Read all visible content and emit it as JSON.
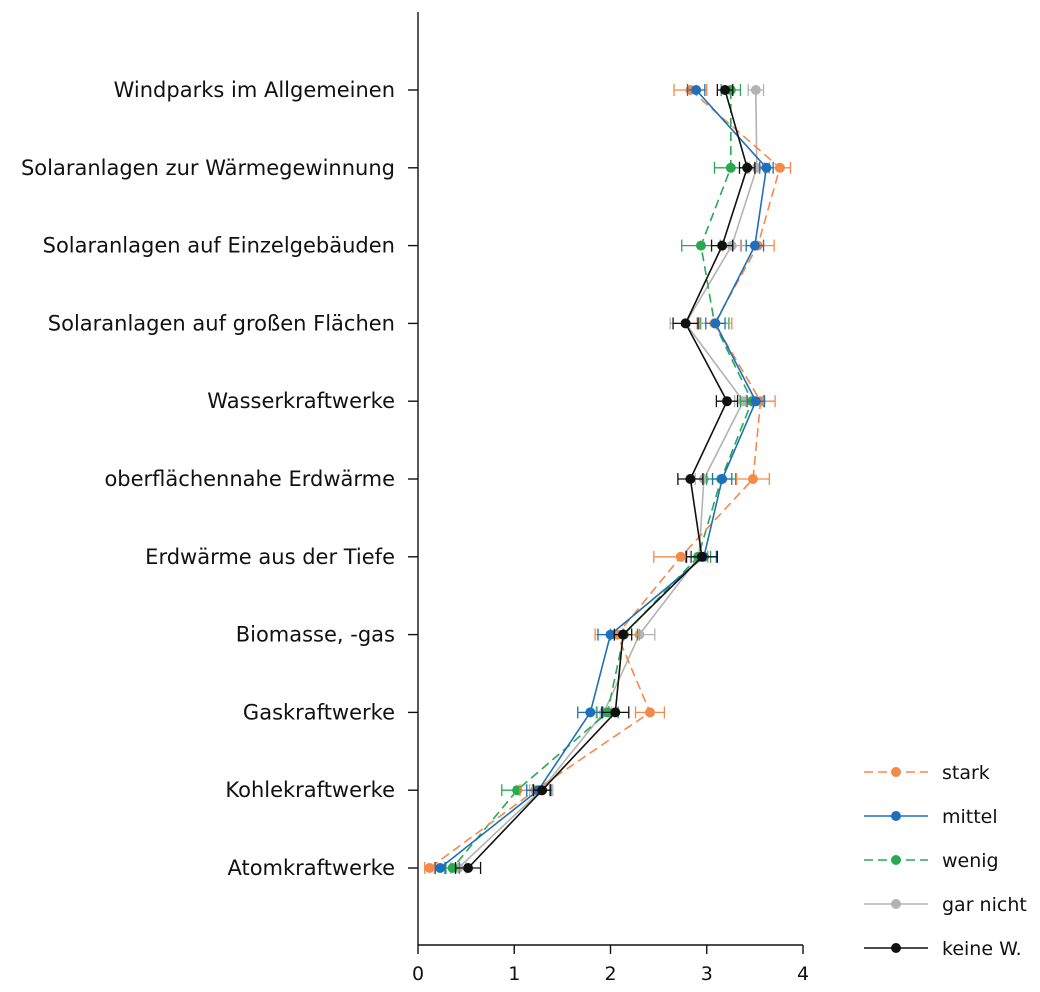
{
  "chart_data": {
    "type": "line",
    "orientation": "horizontal",
    "categories": [
      "Windparks im Allgemeinen",
      "Solaranlagen zur Wärmegewinnung",
      "Solaranlagen auf Einzelgebäuden",
      "Solaranlagen auf großen Flächen",
      "Wasserkraftwerke",
      "oberflächennahe Erdwärme",
      "Erdwärme aus der Tiefe",
      "Biomasse, -gas",
      "Gaskraftwerke",
      "Kohlekraftwerke",
      "Atomkraftwerke"
    ],
    "x_ticks": [
      "0",
      "1",
      "2",
      "3",
      "4"
    ],
    "xlim": [
      0,
      4
    ],
    "grid": false,
    "legend_position": "bottom-right",
    "series": [
      {
        "name": "stark",
        "color": "#f58a48",
        "dashed": true,
        "values": [
          2.83,
          3.76,
          3.53,
          3.08,
          3.56,
          3.48,
          2.73,
          2.07,
          2.41,
          1.22,
          0.12
        ],
        "errors": [
          0.17,
          0.11,
          0.17,
          0.18,
          0.15,
          0.17,
          0.28,
          0.23,
          0.15,
          0.16,
          0.05
        ]
      },
      {
        "name": "mittel",
        "color": "#1f6fba",
        "dashed": false,
        "values": [
          2.89,
          3.62,
          3.5,
          3.09,
          3.51,
          3.16,
          2.97,
          2.0,
          1.79,
          1.25,
          0.23
        ],
        "errors": [
          0.09,
          0.07,
          0.09,
          0.1,
          0.09,
          0.1,
          0.13,
          0.13,
          0.13,
          0.12,
          0.05
        ]
      },
      {
        "name": "wenig",
        "color": "#2aa852",
        "dashed": true,
        "values": [
          3.25,
          3.25,
          2.94,
          3.08,
          3.47,
          3.15,
          2.91,
          2.14,
          1.97,
          1.03,
          0.36
        ],
        "errors": [
          0.1,
          0.17,
          0.2,
          0.15,
          0.12,
          0.15,
          0.13,
          0.14,
          0.11,
          0.16,
          0.07
        ]
      },
      {
        "name": "gar nicht",
        "color": "#b3b3b3",
        "dashed": false,
        "values": [
          3.51,
          3.52,
          3.26,
          2.78,
          3.38,
          2.97,
          2.92,
          2.3,
          1.93,
          1.28,
          0.42
        ],
        "errors": [
          0.08,
          0.08,
          0.09,
          0.16,
          0.09,
          0.09,
          0.09,
          0.16,
          0.08,
          0.12,
          0.08
        ]
      },
      {
        "name": "keine W.",
        "color": "#111111",
        "dashed": false,
        "values": [
          3.19,
          3.42,
          3.16,
          2.78,
          3.21,
          2.83,
          2.95,
          2.13,
          2.05,
          1.29,
          0.52
        ],
        "errors": [
          0.08,
          0.08,
          0.11,
          0.13,
          0.11,
          0.13,
          0.16,
          0.09,
          0.14,
          0.09,
          0.13
        ]
      }
    ]
  }
}
